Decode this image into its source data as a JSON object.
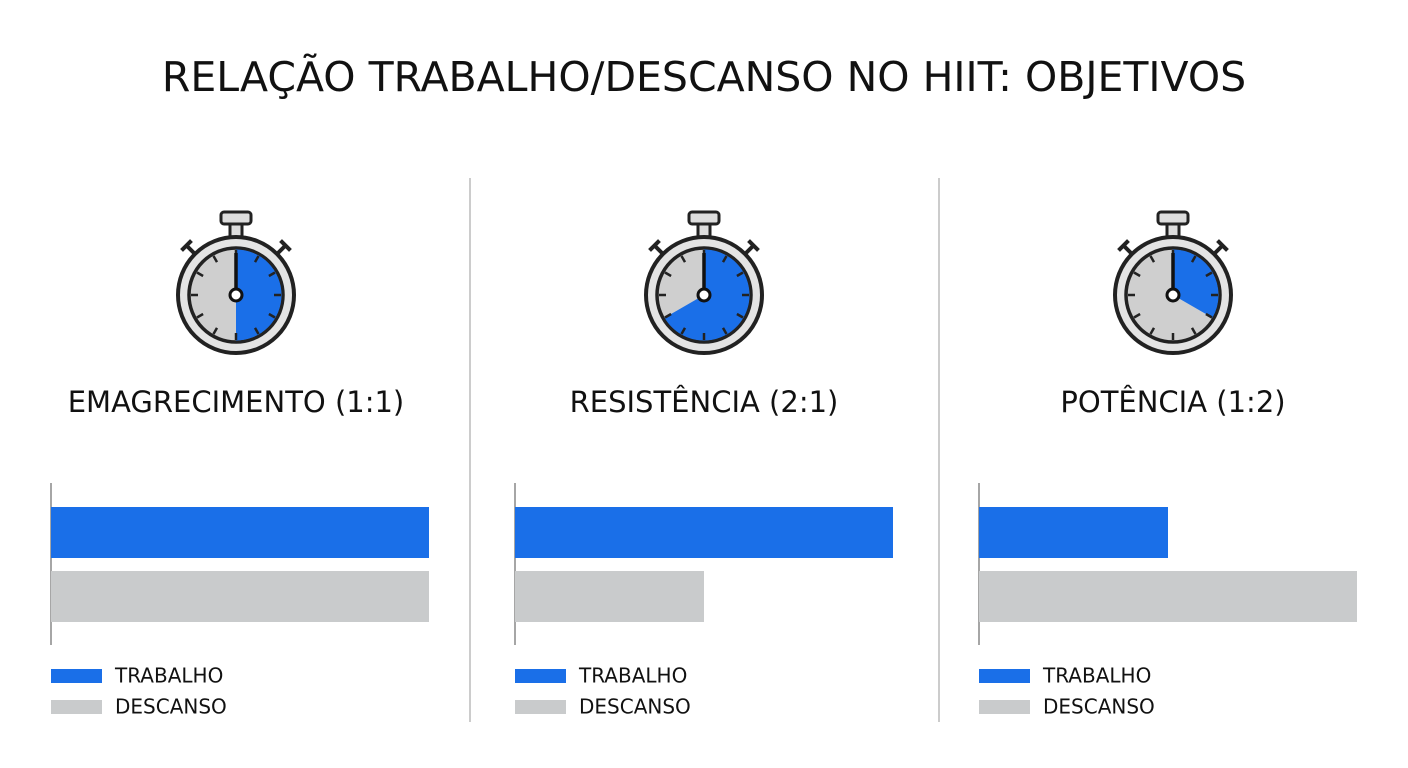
{
  "title": "RELAÇÃO TRABALHO/DESCANSO NO HIIT: OBJETIVOS",
  "chart_data": [
    {
      "type": "bar",
      "orientation": "horizontal",
      "title": "EMAGRECIMENTO (1:1)",
      "xlim": [
        0,
        1
      ],
      "series": [
        {
          "name": "TRABALHO",
          "color": "#1a6fe8",
          "values": [
            1
          ]
        },
        {
          "name": "DESCANSO",
          "color": "#c9cbcc",
          "values": [
            1
          ]
        }
      ]
    },
    {
      "type": "bar",
      "orientation": "horizontal",
      "title": "RESISTÊNCIA (2:1)",
      "xlim": [
        0,
        2
      ],
      "series": [
        {
          "name": "TRABALHO",
          "color": "#1a6fe8",
          "values": [
            2
          ]
        },
        {
          "name": "DESCANSO",
          "color": "#c9cbcc",
          "values": [
            1
          ]
        }
      ]
    },
    {
      "type": "bar",
      "orientation": "horizontal",
      "title": "POTÊNCIA (1:2)",
      "xlim": [
        0,
        2
      ],
      "series": [
        {
          "name": "TRABALHO",
          "color": "#1a6fe8",
          "values": [
            1
          ]
        },
        {
          "name": "DESCANSO",
          "color": "#c9cbcc",
          "values": [
            2
          ]
        }
      ]
    }
  ]
}
